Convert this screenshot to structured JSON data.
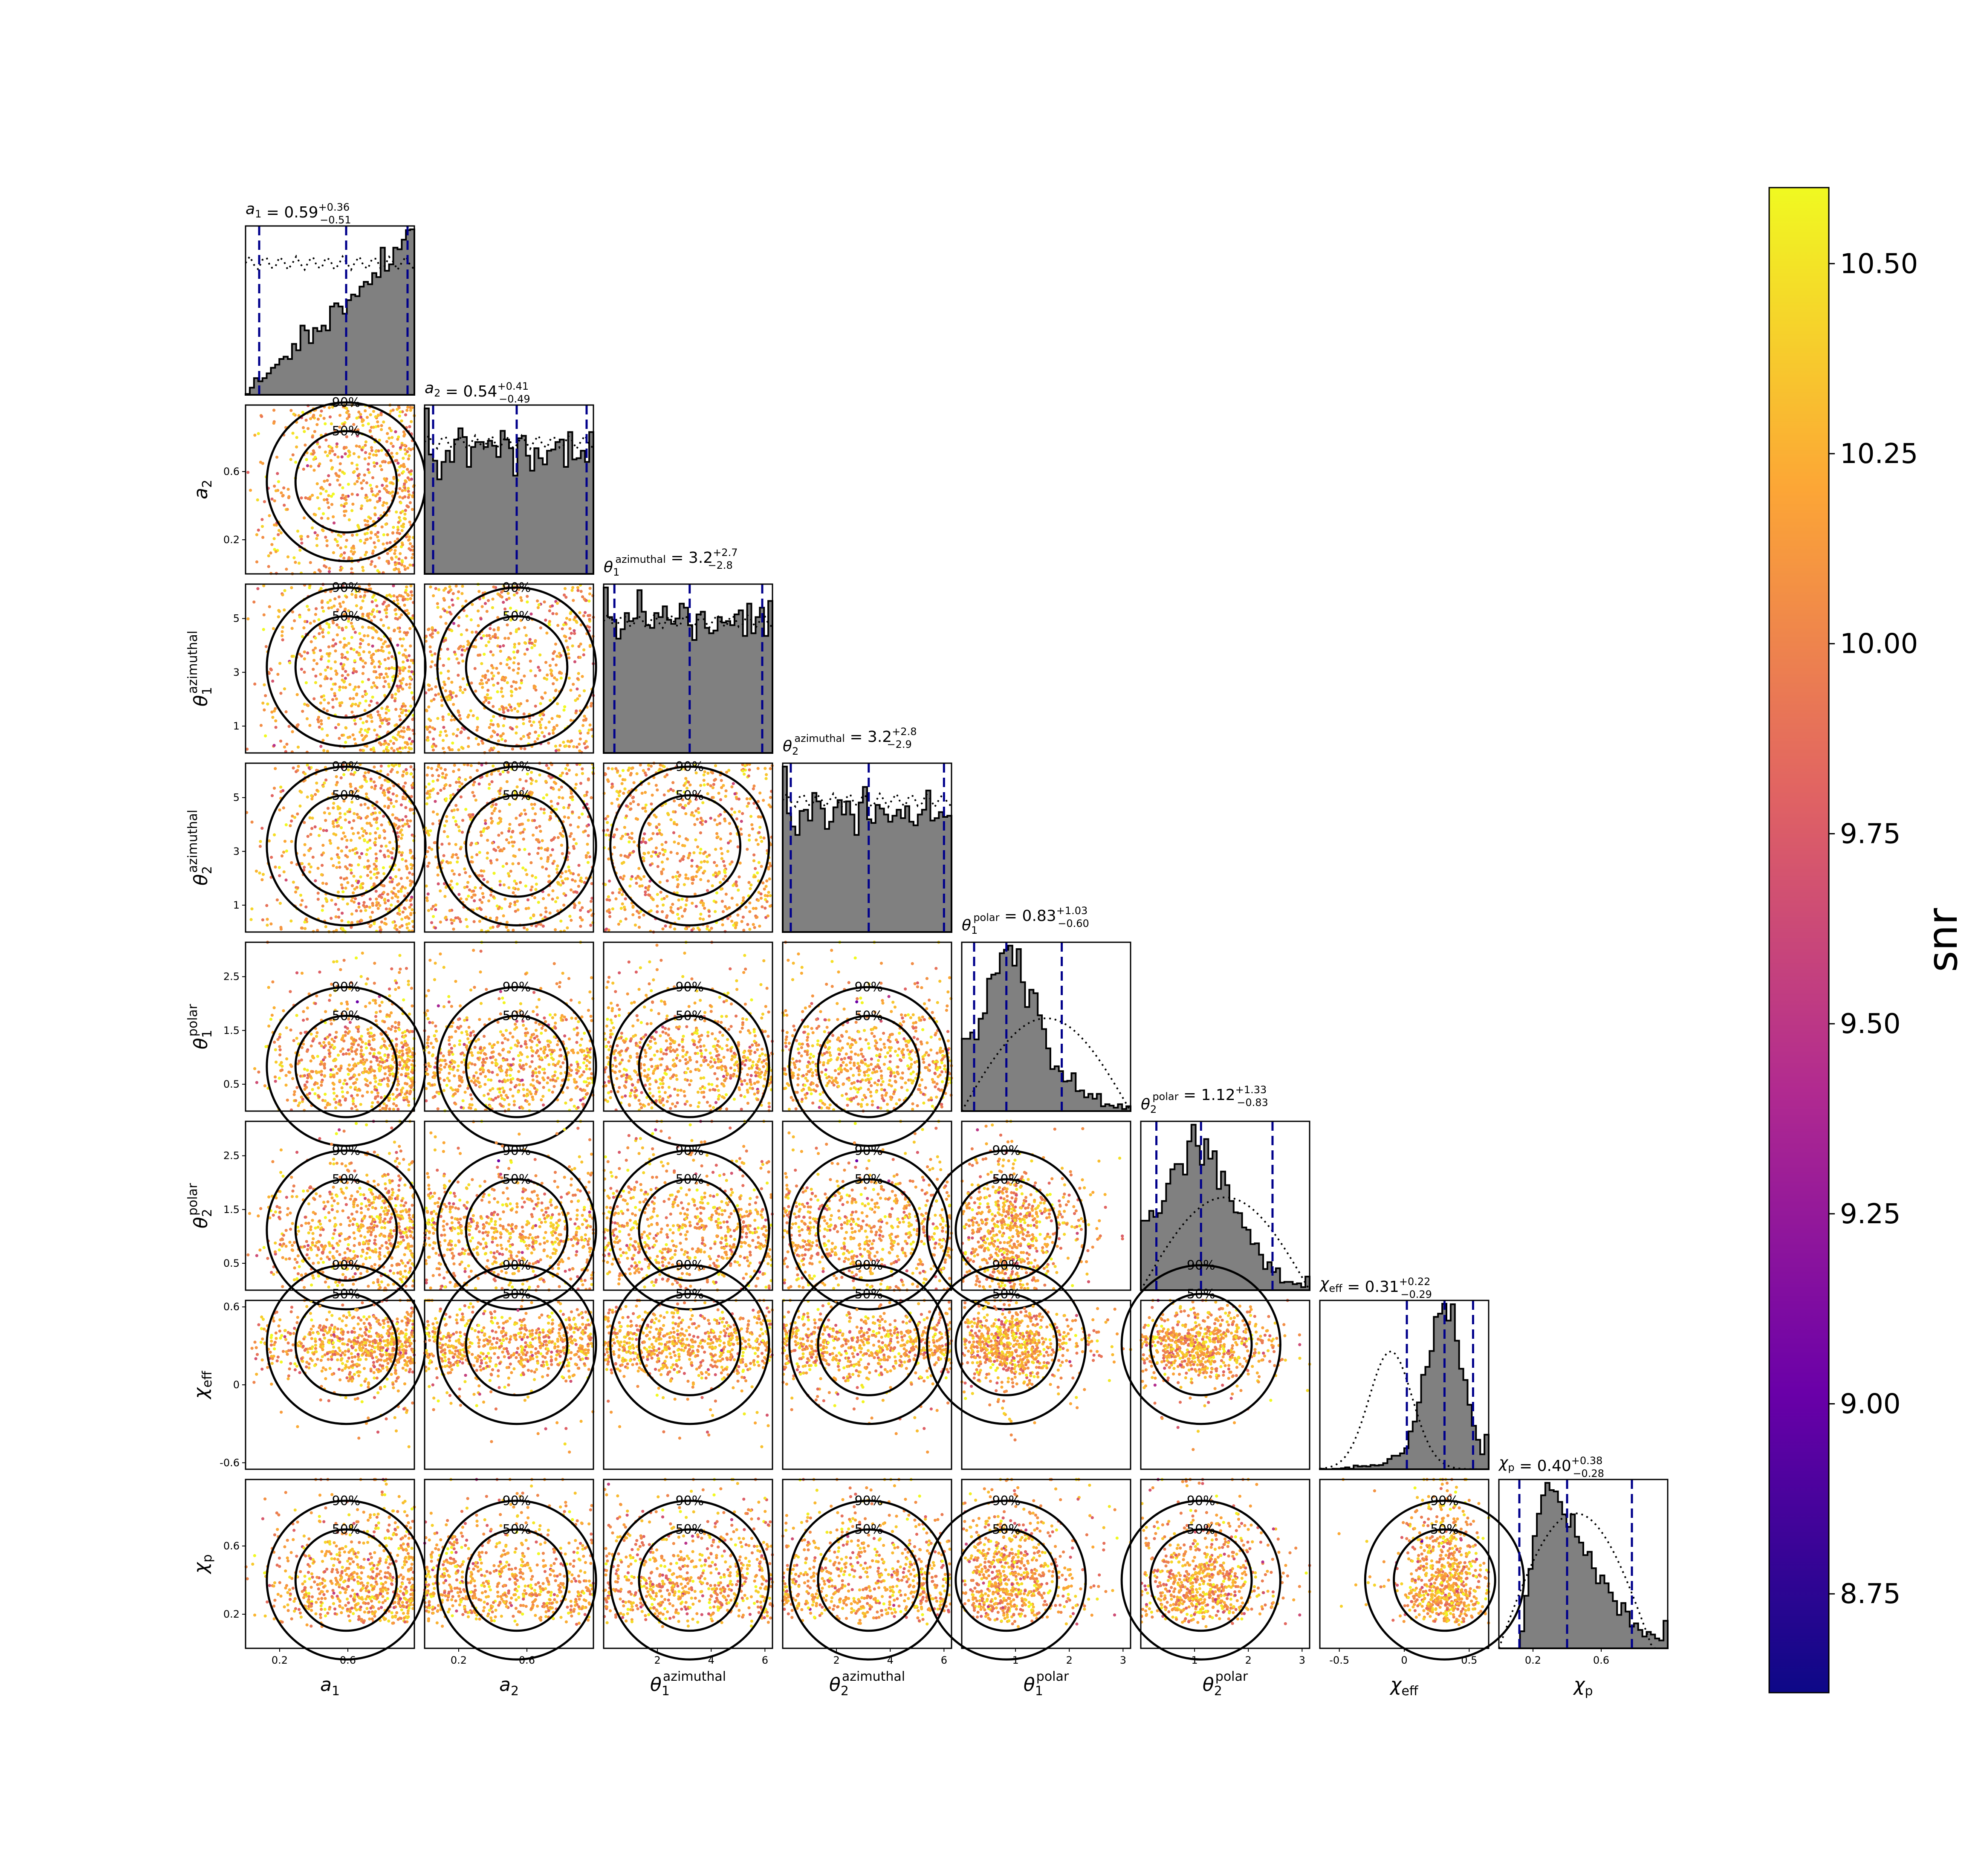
{
  "chart_data": {
    "type": "corner",
    "parameters": [
      {
        "key": "a1",
        "label": "a1",
        "range": [
          0.0,
          0.99
        ],
        "ticks": [
          0.2,
          0.6
        ],
        "median": 0.59,
        "plus": 0.36,
        "minus": 0.51,
        "title": {
          "name": "a",
          "sub": "1",
          "value": "0.59",
          "plus": "+0.36",
          "minus": "−0.51"
        }
      },
      {
        "key": "a2",
        "label": "a2",
        "range": [
          0.0,
          0.99
        ],
        "ticks": [
          0.2,
          0.6
        ],
        "median": 0.54,
        "plus": 0.41,
        "minus": 0.49,
        "title": {
          "name": "a",
          "sub": "2",
          "value": "0.54",
          "plus": "+0.41",
          "minus": "−0.49"
        }
      },
      {
        "key": "theta1_az",
        "label": "θ1 azimuthal",
        "range": [
          0.0,
          6.28
        ],
        "ticks": [
          1,
          3,
          5
        ],
        "xticks": [
          2,
          4,
          6
        ],
        "median": 3.2,
        "plus": 2.7,
        "minus": 2.8,
        "title": {
          "name": "θ",
          "sub": "1",
          "sup": "azimuthal",
          "value": "3.2",
          "plus": "+2.7",
          "minus": "−2.8"
        }
      },
      {
        "key": "theta2_az",
        "label": "θ2 azimuthal",
        "range": [
          0.0,
          6.28
        ],
        "ticks": [
          1,
          3,
          5
        ],
        "xticks": [
          2,
          4,
          6
        ],
        "median": 3.2,
        "plus": 2.8,
        "minus": 2.9,
        "title": {
          "name": "θ",
          "sub": "2",
          "sup": "azimuthal",
          "value": "3.2",
          "plus": "+2.8",
          "minus": "−2.9"
        }
      },
      {
        "key": "theta1_pol",
        "label": "θ1 polar",
        "range": [
          0.0,
          3.14
        ],
        "ticks": [
          0.5,
          1.5,
          2.5
        ],
        "xticks": [
          1,
          2,
          3
        ],
        "median": 0.83,
        "plus": 1.03,
        "minus": 0.6,
        "title": {
          "name": "θ",
          "sub": "1",
          "sup": "polar",
          "value": "0.83",
          "plus": "+1.03",
          "minus": "−0.60"
        }
      },
      {
        "key": "theta2_pol",
        "label": "θ2 polar",
        "range": [
          0.0,
          3.14
        ],
        "ticks": [
          0.5,
          1.5,
          2.5
        ],
        "xticks": [
          1,
          2,
          3
        ],
        "median": 1.12,
        "plus": 1.33,
        "minus": 0.83,
        "title": {
          "name": "θ",
          "sub": "2",
          "sup": "polar",
          "value": "1.12",
          "plus": "+1.33",
          "minus": "−0.83"
        }
      },
      {
        "key": "chi_eff",
        "label": "χeff",
        "range": [
          -0.65,
          0.65
        ],
        "ticks": [
          -0.6,
          0.0,
          0.6
        ],
        "xticks": [
          -0.5,
          0.0,
          0.5
        ],
        "median": 0.31,
        "plus": 0.22,
        "minus": 0.29,
        "title": {
          "name": "χ",
          "sub": "eff",
          "value": "0.31",
          "plus": "+0.22",
          "minus": "−0.29"
        }
      },
      {
        "key": "chi_p",
        "label": "χp",
        "range": [
          0.0,
          0.99
        ],
        "ticks": [
          0.2,
          0.6
        ],
        "median": 0.4,
        "plus": 0.38,
        "minus": 0.28,
        "title": {
          "name": "χ",
          "sub": "p",
          "value": "0.40",
          "plus": "+0.38",
          "minus": "−0.28"
        }
      }
    ],
    "contour_levels": [
      "50%",
      "90%"
    ],
    "histogram_fill": "#808080",
    "quantile_line_color": "#00008b",
    "colorbar": {
      "label": "snr",
      "range": [
        8.62,
        10.6
      ],
      "ticks": [
        "8.75",
        "9.00",
        "9.25",
        "9.50",
        "9.75",
        "10.00",
        "10.25",
        "10.50"
      ],
      "colormap": "plasma",
      "stops": [
        "#0d0887",
        "#6a00a8",
        "#b12a90",
        "#e16462",
        "#fca636",
        "#f0f921"
      ]
    }
  }
}
